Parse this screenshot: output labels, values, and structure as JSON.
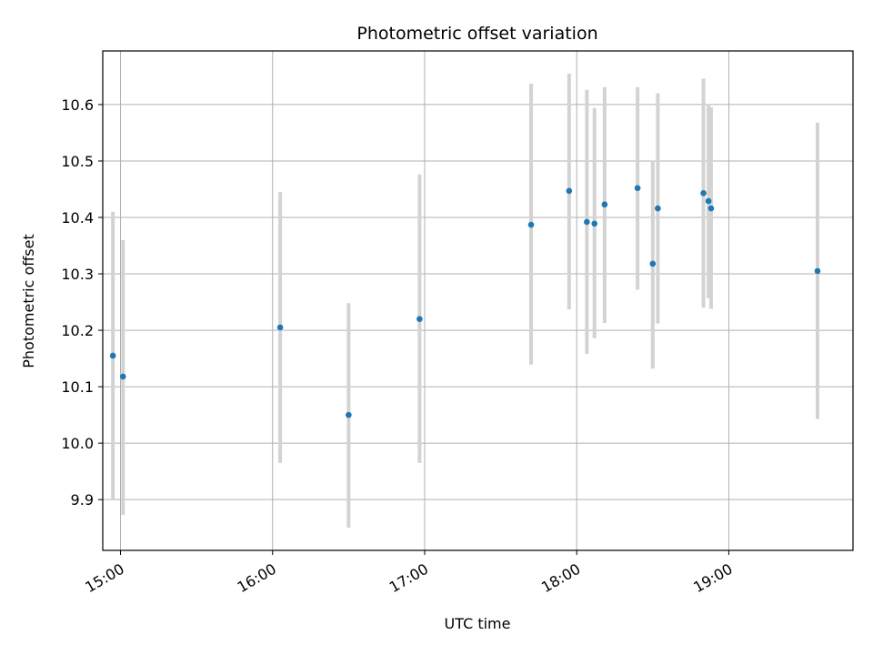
{
  "chart_data": {
    "type": "scatter",
    "title": "Photometric offset variation",
    "xlabel": "UTC time",
    "ylabel": "Photometric offset",
    "xlim": [
      "14:53",
      "19:49"
    ],
    "ylim": [
      9.81,
      10.695
    ],
    "x_ticks": [
      "15:00",
      "16:00",
      "17:00",
      "18:00",
      "19:00"
    ],
    "y_ticks": [
      9.9,
      10.0,
      10.1,
      10.2,
      10.3,
      10.4,
      10.5,
      10.6
    ],
    "y_tick_labels": [
      "9.9",
      "10.0",
      "10.1",
      "10.2",
      "10.3",
      "10.4",
      "10.5",
      "10.6"
    ],
    "grid": true,
    "colors": {
      "points": "#1f77b4",
      "error_bars": "#d3d3d3"
    },
    "points": [
      {
        "x": "14:57",
        "y": 10.155,
        "ylo": 9.9,
        "yhi": 10.41
      },
      {
        "x": "15:01",
        "y": 10.118,
        "ylo": 9.873,
        "yhi": 10.36
      },
      {
        "x": "16:03",
        "y": 10.205,
        "ylo": 9.965,
        "yhi": 10.445
      },
      {
        "x": "16:30",
        "y": 10.05,
        "ylo": 9.85,
        "yhi": 10.248
      },
      {
        "x": "16:58",
        "y": 10.22,
        "ylo": 9.965,
        "yhi": 10.476
      },
      {
        "x": "17:42",
        "y": 10.387,
        "ylo": 10.139,
        "yhi": 10.637
      },
      {
        "x": "17:57",
        "y": 10.447,
        "ylo": 10.237,
        "yhi": 10.655
      },
      {
        "x": "18:04",
        "y": 10.392,
        "ylo": 10.158,
        "yhi": 10.626
      },
      {
        "x": "18:07",
        "y": 10.389,
        "ylo": 10.186,
        "yhi": 10.594
      },
      {
        "x": "18:11",
        "y": 10.423,
        "ylo": 10.213,
        "yhi": 10.631
      },
      {
        "x": "18:24",
        "y": 10.452,
        "ylo": 10.272,
        "yhi": 10.631
      },
      {
        "x": "18:30",
        "y": 10.318,
        "ylo": 10.132,
        "yhi": 10.501
      },
      {
        "x": "18:32",
        "y": 10.416,
        "ylo": 10.212,
        "yhi": 10.62
      },
      {
        "x": "18:50",
        "y": 10.443,
        "ylo": 10.24,
        "yhi": 10.646
      },
      {
        "x": "18:52",
        "y": 10.429,
        "ylo": 10.257,
        "yhi": 10.601
      },
      {
        "x": "18:53",
        "y": 10.416,
        "ylo": 10.238,
        "yhi": 10.595
      },
      {
        "x": "19:35",
        "y": 10.305,
        "ylo": 10.043,
        "yhi": 10.568
      }
    ]
  }
}
